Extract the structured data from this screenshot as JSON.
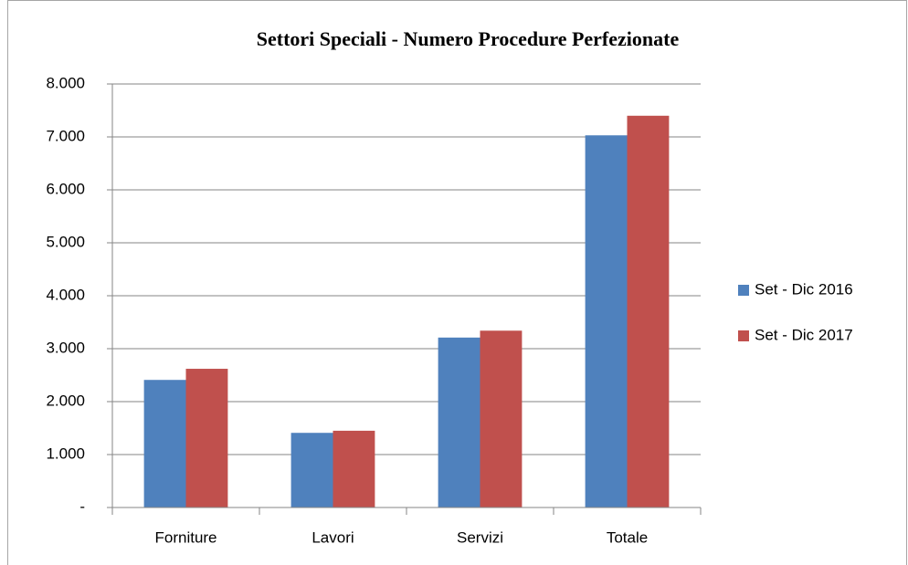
{
  "chart_data": {
    "type": "bar",
    "title": "Settori Speciali - Numero Procedure Perfezionate",
    "categories": [
      "Forniture",
      "Lavori",
      "Servizi",
      "Totale"
    ],
    "series": [
      {
        "name": "Set - Dic 2016",
        "color": "#4f81bd",
        "values": [
          2410,
          1410,
          3210,
          7030
        ]
      },
      {
        "name": "Set - Dic 2017",
        "color": "#c0504d",
        "values": [
          2620,
          1450,
          3340,
          7400
        ]
      }
    ],
    "ylim": [
      0,
      8000
    ],
    "yticks": [
      {
        "value": 0,
        "label": "-"
      },
      {
        "value": 1000,
        "label": "1.000"
      },
      {
        "value": 2000,
        "label": "2.000"
      },
      {
        "value": 3000,
        "label": "3.000"
      },
      {
        "value": 4000,
        "label": "4.000"
      },
      {
        "value": 5000,
        "label": "5.000"
      },
      {
        "value": 6000,
        "label": "6.000"
      },
      {
        "value": 7000,
        "label": "7.000"
      },
      {
        "value": 8000,
        "label": "8.000"
      }
    ],
    "grid": true,
    "legend": "right"
  }
}
